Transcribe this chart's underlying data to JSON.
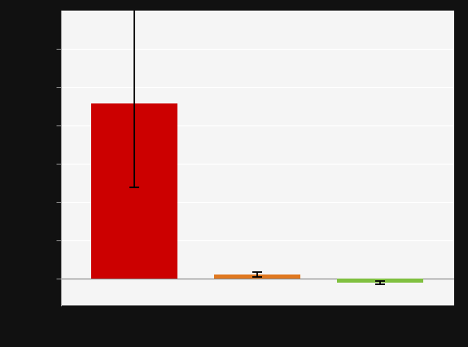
{
  "values": [
    2.29,
    0.05,
    -0.05
  ],
  "error_lower": [
    1.1,
    0.03,
    0.02
  ],
  "error_upper": [
    1.9,
    0.03,
    0.02
  ],
  "bar_colors": [
    "#cc0000",
    "#e07820",
    "#80c040"
  ],
  "bar_width": 0.7,
  "ylim": [
    -0.35,
    3.5
  ],
  "yticks": [
    0.0,
    0.5,
    1.0,
    1.5,
    2.0,
    2.5,
    3.0
  ],
  "background_color": "#111111",
  "plot_bg_color": "#f5f5f5",
  "grid_color": "#ffffff",
  "figsize": [
    5.75,
    4.26
  ],
  "dpi": 100
}
